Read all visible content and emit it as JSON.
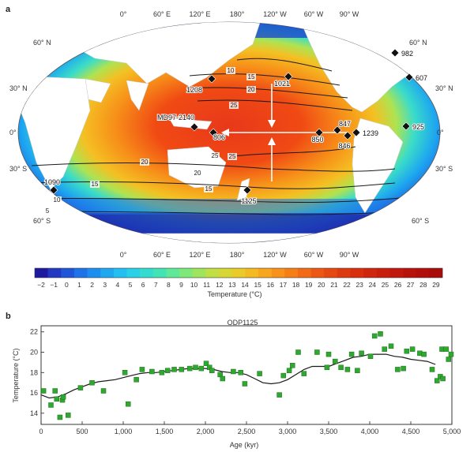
{
  "panel_a": {
    "label": "a",
    "lon_ticks_top": [
      "0°",
      "60° E",
      "120° E",
      "180°",
      "120° W",
      "60° W",
      "90° W"
    ],
    "lon_ticks_bottom": [
      "0°",
      "60° E",
      "120° E",
      "180°",
      "120° W",
      "60° W",
      "90° W"
    ],
    "lat_left": [
      "60° N",
      "30° N",
      "0°",
      "30° S",
      "60° S"
    ],
    "lat_right": [
      "60° N",
      "30° N",
      "0°",
      "30° S",
      "60° S"
    ],
    "contour_labels": [
      "10",
      "15",
      "20",
      "25",
      "25",
      "20",
      "15",
      "10",
      "5",
      "15",
      "20",
      "25"
    ],
    "sites": [
      {
        "id": "982",
        "label": "982"
      },
      {
        "id": "607",
        "label": "607"
      },
      {
        "id": "1021",
        "label": "1021"
      },
      {
        "id": "1208",
        "label": "1208"
      },
      {
        "id": "md97-2140",
        "label": "MD97-2140"
      },
      {
        "id": "806",
        "label": "806"
      },
      {
        "id": "847",
        "label": "847"
      },
      {
        "id": "850",
        "label": "850"
      },
      {
        "id": "846",
        "label": "846"
      },
      {
        "id": "1239",
        "label": "1239"
      },
      {
        "id": "925",
        "label": "925"
      },
      {
        "id": "1125",
        "label": "1125"
      },
      {
        "id": "1090",
        "label": "1090"
      }
    ],
    "colorbar": {
      "ticks": [
        "−2",
        "−1",
        "0",
        "1",
        "2",
        "3",
        "4",
        "5",
        "6",
        "7",
        "8",
        "9",
        "10",
        "11",
        "12",
        "13",
        "14",
        "15",
        "16",
        "17",
        "18",
        "19",
        "20",
        "21",
        "22",
        "23",
        "24",
        "25",
        "26",
        "27",
        "28",
        "29"
      ],
      "label": "Temperature (°C)",
      "colors": [
        "#1d1aa0",
        "#2238c0",
        "#1f55d8",
        "#1f72e8",
        "#1c8ef0",
        "#1ea8f0",
        "#22bff0",
        "#2ad0e6",
        "#34dcd0",
        "#44e3b6",
        "#5fe897",
        "#7ee878",
        "#9fe45c",
        "#bfdf45",
        "#d8d635",
        "#eacb2a",
        "#f4ba22",
        "#f8a61e",
        "#f8921a",
        "#f67e17",
        "#f26a15",
        "#ec5813",
        "#e54811",
        "#de3a10",
        "#d82f0f",
        "#d0250e",
        "#c81e0d",
        "#c0180c",
        "#b8130b",
        "#b00f0a",
        "#a80c0a"
      ]
    }
  },
  "panel_b": {
    "label": "b",
    "title": "ODP1125"
  },
  "chart_data": {
    "type": "scatter",
    "title": "ODP1125",
    "xlabel": "Age (kyr)",
    "ylabel": "Temperature (°C)",
    "xlim": [
      0,
      5000
    ],
    "ylim": [
      12.9,
      22.6
    ],
    "xticks": [
      0,
      500,
      1000,
      1500,
      2000,
      2500,
      3000,
      3500,
      4000,
      4500,
      5000
    ],
    "xtick_labels": [
      "0",
      "500",
      "1,000",
      "1,500",
      "2,000",
      "2,500",
      "3,000",
      "3,500",
      "4,000",
      "4,500",
      "5,000"
    ],
    "yticks": [
      14,
      16,
      18,
      20,
      22
    ],
    "grid": false,
    "series": [
      {
        "kind": "points",
        "color": "#2fa82f",
        "x": [
          30,
          120,
          170,
          190,
          230,
          260,
          270,
          330,
          480,
          620,
          760,
          1020,
          1060,
          1160,
          1230,
          1350,
          1470,
          1540,
          1620,
          1710,
          1810,
          1880,
          1950,
          2010,
          2050,
          2080,
          2180,
          2210,
          2340,
          2430,
          2480,
          2660,
          2900,
          2950,
          3020,
          3060,
          3130,
          3200,
          3360,
          3480,
          3500,
          3580,
          3650,
          3730,
          3780,
          3850,
          3900,
          4010,
          4060,
          4130,
          4180,
          4260,
          4340,
          4410,
          4450,
          4520,
          4610,
          4660,
          4760,
          4820,
          4860,
          4880,
          4890,
          4930,
          4960,
          4990
        ],
        "y": [
          16.2,
          14.8,
          16.2,
          15.4,
          13.6,
          15.3,
          15.6,
          13.8,
          16.5,
          17.0,
          16.2,
          18.0,
          14.9,
          17.3,
          18.3,
          18.1,
          18.0,
          18.2,
          18.3,
          18.3,
          18.4,
          18.5,
          18.4,
          18.9,
          18.5,
          18.2,
          17.8,
          17.4,
          18.1,
          18.0,
          16.9,
          17.9,
          15.8,
          17.7,
          18.2,
          18.7,
          20.0,
          17.9,
          20.0,
          18.5,
          19.8,
          19.1,
          18.5,
          18.3,
          19.8,
          18.2,
          19.9,
          19.6,
          21.6,
          21.8,
          20.3,
          20.6,
          18.3,
          18.4,
          20.1,
          20.3,
          19.9,
          19.8,
          18.3,
          17.2,
          17.6,
          20.3,
          17.4,
          20.3,
          19.3,
          19.8
        ]
      },
      {
        "kind": "line",
        "color": "#1a1a1a",
        "x": [
          0,
          100,
          200,
          300,
          400,
          500,
          600,
          700,
          800,
          900,
          1000,
          1100,
          1200,
          1300,
          1400,
          1500,
          1600,
          1700,
          1800,
          1900,
          2000,
          2100,
          2200,
          2300,
          2400,
          2500,
          2600,
          2700,
          2800,
          2900,
          3000,
          3100,
          3200,
          3300,
          3400,
          3500,
          3600,
          3700,
          3800,
          3900,
          4000,
          4100,
          4200,
          4300,
          4400,
          4500,
          4600,
          4700,
          4800
        ],
        "y": [
          15.8,
          15.5,
          15.6,
          15.9,
          16.3,
          16.6,
          16.9,
          17.1,
          17.2,
          17.3,
          17.5,
          17.7,
          17.9,
          18.0,
          18.0,
          18.1,
          18.2,
          18.3,
          18.4,
          18.4,
          18.4,
          18.3,
          18.1,
          18.0,
          18.0,
          17.8,
          17.4,
          17.0,
          16.9,
          17.0,
          17.3,
          17.8,
          18.3,
          18.6,
          18.6,
          18.6,
          18.9,
          19.2,
          19.5,
          19.6,
          19.8,
          19.8,
          19.8,
          19.6,
          19.5,
          19.3,
          19.2,
          19.1,
          18.8
        ]
      }
    ]
  }
}
